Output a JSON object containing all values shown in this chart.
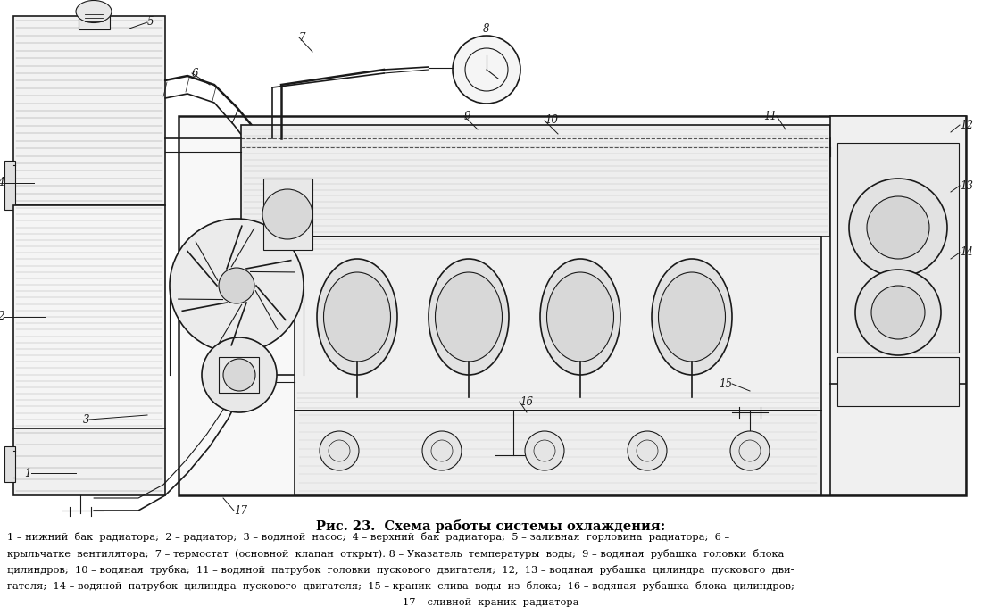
{
  "title": "Рис. 23.  Схема работы системы охлаждения:",
  "caption_lines": [
    "1 – нижний  бак  радиатора;  2 – радиатор;  3 – водяной  насос;  4 – верхний  бак  радиатора;  5 – заливная  горловина  радиатора;  6 –",
    "крыльчатке  вентилятора;  7 – термостат  (основной  клапан  открыт). 8 – Указатель  температуры  воды;  9 – водяная  рубашка  головки  блока",
    "цилиндров;  10 – водяная  трубка;  11 – водяной  патрубок  головки  пускового  двигателя;  12,  13 – водяная  рубашка  цилиндра  пускового  дви-",
    "гателя;  14 – водяной  патрубок  цилиндра  пускового  двигателя;  15 – краник  слива  воды  из  блока;  16 – водяная  рубашка  блока  цилиндров;",
    "17 – сливной  краник  радиатора"
  ],
  "bg_color": "#ffffff",
  "text_color": "#000000",
  "fig_width": 11.0,
  "fig_height": 6.89,
  "dpi": 100,
  "title_fontsize": 10.5,
  "caption_fontsize": 8.2
}
